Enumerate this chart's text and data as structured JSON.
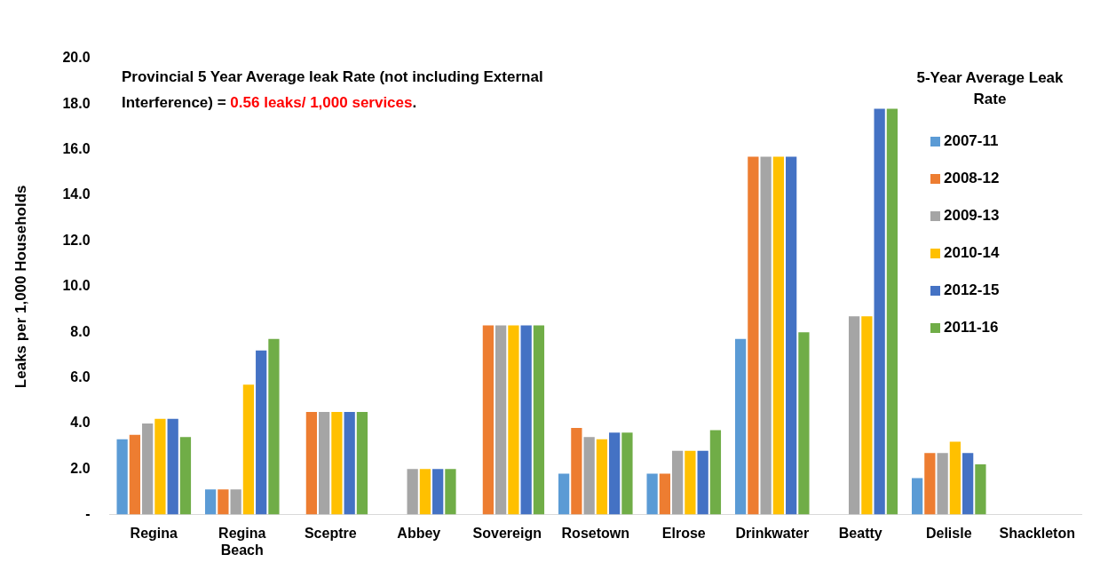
{
  "chart_data": {
    "type": "bar",
    "ylabel": "Leaks per 1,000 Households",
    "legend_title": "5-Year Average Leak Rate",
    "legend": "top right",
    "grid": false,
    "categories": [
      "Regina",
      "Regina Beach",
      "Sceptre",
      "Abbey",
      "Sovereign",
      "Rosetown",
      "Elrose",
      "Drinkwater",
      "Beatty",
      "Delisle",
      "Shackleton"
    ],
    "ylim": [
      0,
      20
    ],
    "yticks": [
      {
        "value": 0,
        "label": "-"
      },
      {
        "value": 2,
        "label": "2.0"
      },
      {
        "value": 4,
        "label": "4.0"
      },
      {
        "value": 6,
        "label": "6.0"
      },
      {
        "value": 8,
        "label": "8.0"
      },
      {
        "value": 10,
        "label": "10.0"
      },
      {
        "value": 12,
        "label": "12.0"
      },
      {
        "value": 14,
        "label": "14.0"
      },
      {
        "value": 16,
        "label": "16.0"
      },
      {
        "value": 18,
        "label": "18.0"
      },
      {
        "value": 20,
        "label": "20.0"
      }
    ],
    "annotations": [
      "Provincial 5 Year Average leak Rate (not including External Interference) = ",
      "0.56 leaks/ 1,000 services",
      "."
    ],
    "series": [
      {
        "name": "2007-11",
        "color": "#5b9bd5",
        "values": [
          3.3,
          1.1,
          null,
          null,
          null,
          1.8,
          1.8,
          7.7,
          null,
          1.6,
          null
        ]
      },
      {
        "name": "2008-12",
        "color": "#ed7d31",
        "values": [
          3.5,
          1.1,
          4.5,
          null,
          8.3,
          3.8,
          1.8,
          15.7,
          null,
          2.7,
          null
        ]
      },
      {
        "name": "2009-13",
        "color": "#a5a5a5",
        "values": [
          4.0,
          1.1,
          4.5,
          2.0,
          8.3,
          3.4,
          2.8,
          15.7,
          8.7,
          2.7,
          null
        ]
      },
      {
        "name": "2010-14",
        "color": "#ffc000",
        "values": [
          4.2,
          5.7,
          4.5,
          2.0,
          8.3,
          3.3,
          2.8,
          15.7,
          8.7,
          3.2,
          null
        ]
      },
      {
        "name": "2012-15",
        "color": "#4472c4",
        "values": [
          4.2,
          7.2,
          4.5,
          2.0,
          8.3,
          3.6,
          2.8,
          15.7,
          17.8,
          2.7,
          null
        ]
      },
      {
        "name": "2011-16",
        "color": "#70ad47",
        "values": [
          3.4,
          7.7,
          4.5,
          2.0,
          8.3,
          3.6,
          3.7,
          8.0,
          17.8,
          2.2,
          null
        ]
      }
    ]
  }
}
